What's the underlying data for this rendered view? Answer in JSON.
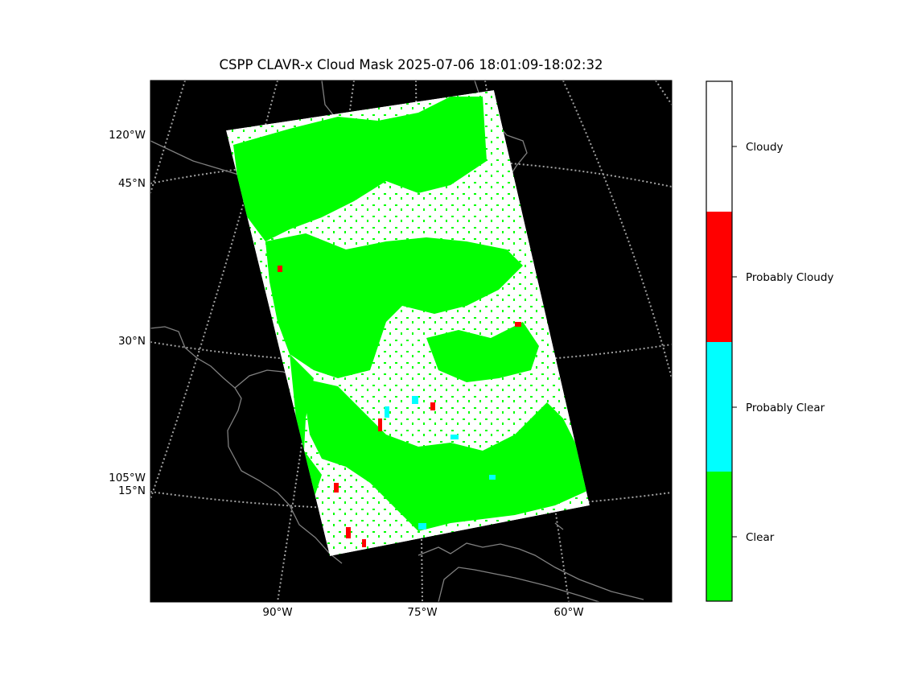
{
  "chart_data": {
    "type": "heatmap",
    "title": "CSPP CLAVR-x Cloud Mask 2025-07-06 18:01:09-18:02:32",
    "map": {
      "background_color": "#000000",
      "coastline_color": "#808080",
      "graticule_color": "#a0a0a0",
      "graticule_style": "dotted",
      "lon_labels": [
        "90°W",
        "75°W",
        "60°W"
      ],
      "lat_labels": [
        "45°N",
        "30°N",
        "15°N"
      ],
      "left_lon_labels": [
        "120°W",
        "105°W"
      ],
      "swath_fractions": {
        "Clear": 0.45,
        "Probably Clear": 0.01,
        "Probably Cloudy": 0.02,
        "Cloudy": 0.52
      }
    },
    "colorbar": {
      "categories": [
        "Clear",
        "Probably Clear",
        "Probably Cloudy",
        "Cloudy"
      ],
      "colors": [
        "#00ff00",
        "#00ffff",
        "#ff0000",
        "#ffffff"
      ]
    }
  }
}
